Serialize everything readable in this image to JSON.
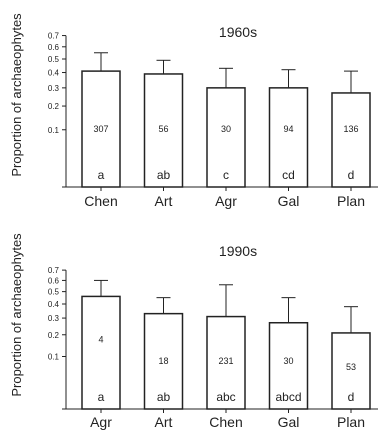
{
  "colors": {
    "bar_fill": "#ffffff",
    "stroke": "#222222",
    "text": "#222222",
    "background": "#ffffff"
  },
  "chart_data": [
    {
      "type": "bar",
      "title": "1960s",
      "ylabel": "Proportion of archaeophytes",
      "xlabel": "",
      "ylim": [
        0,
        0.7
      ],
      "y_scale": "square-root",
      "yticks": [
        "0.7",
        "0.6",
        "0.5",
        "0.4",
        "0.3",
        "0.2",
        "0.1"
      ],
      "categories": [
        "Chen",
        "Art",
        "Agr",
        "Gal",
        "Plan"
      ],
      "values": [
        0.41,
        0.39,
        0.3,
        0.3,
        0.27
      ],
      "error_upper": [
        0.55,
        0.49,
        0.43,
        0.42,
        0.41
      ],
      "n_labels": [
        "307",
        "56",
        "30",
        "94",
        "136"
      ],
      "group_letters": [
        "a",
        "ab",
        "c",
        "cd",
        "d"
      ],
      "grid": false
    },
    {
      "type": "bar",
      "title": "1990s",
      "ylabel": "Proportion of archaeophytes",
      "xlabel": "",
      "ylim": [
        0,
        0.7
      ],
      "y_scale": "square-root",
      "yticks": [
        "0.7",
        "0.6",
        "0.5",
        "0.4",
        "0.3",
        "0.2",
        "0.1"
      ],
      "categories": [
        "Agr",
        "Art",
        "Chen",
        "Gal",
        "Plan"
      ],
      "values": [
        0.46,
        0.33,
        0.31,
        0.27,
        0.21
      ],
      "error_upper": [
        0.6,
        0.45,
        0.56,
        0.45,
        0.38
      ],
      "n_labels": [
        "4",
        "18",
        "231",
        "30",
        "53"
      ],
      "group_letters": [
        "a",
        "ab",
        "abc",
        "abcd",
        "d"
      ],
      "grid": false
    }
  ]
}
